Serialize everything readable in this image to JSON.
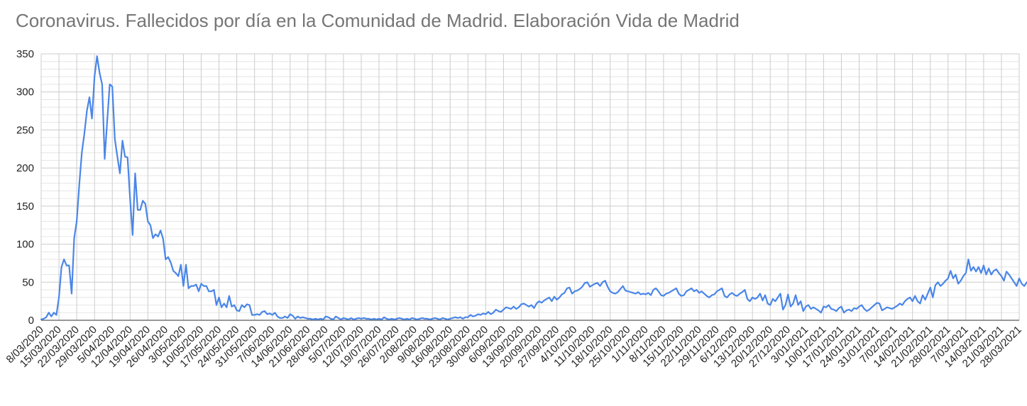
{
  "chart_data": {
    "type": "line",
    "title": "Coronavirus. Fallecidos por día en la Comunidad de Madrid. Elaboración Vida de Madrid",
    "xlabel": "",
    "ylabel": "",
    "ylim": [
      0,
      350
    ],
    "yticks": [
      0,
      50,
      100,
      150,
      200,
      250,
      300,
      350
    ],
    "x_start": "2020-03-08",
    "x_end": "2021-03-28",
    "grid": true,
    "legend": "none",
    "line_color": "#4a86e8",
    "xtick_labels": [
      "8/03/2020",
      "15/03/2020",
      "22/03/2020",
      "29/03/2020",
      "5/04/2020",
      "12/04/2020",
      "19/04/2020",
      "26/04/2020",
      "3/05/2020",
      "10/05/2020",
      "17/05/2020",
      "24/05/2020",
      "31/05/2020",
      "7/06/2020",
      "14/06/2020",
      "21/06/2020",
      "28/06/2020",
      "5/07/2020",
      "12/07/2020",
      "19/07/2020",
      "26/07/2020",
      "2/08/2020",
      "9/08/2020",
      "16/08/2020",
      "23/08/2020",
      "30/08/2020",
      "6/09/2020",
      "13/09/2020",
      "20/09/2020",
      "27/09/2020",
      "4/10/2020",
      "11/10/2020",
      "18/10/2020",
      "25/10/2020",
      "1/11/2020",
      "8/11/2020",
      "15/11/2020",
      "22/11/2020",
      "29/11/2020",
      "6/12/2020",
      "13/12/2020",
      "20/12/2020",
      "27/12/2020",
      "3/01/2021",
      "10/01/2021",
      "17/01/2021",
      "24/01/2021",
      "31/01/2021",
      "7/02/2021",
      "14/02/2021",
      "21/02/2021",
      "28/02/2021",
      "7/03/2021",
      "14/03/2021",
      "21/03/2021",
      "28/03/2021"
    ],
    "series": [
      {
        "name": "",
        "values": [
          1,
          2,
          4,
          10,
          5,
          10,
          7,
          30,
          70,
          80,
          72,
          72,
          35,
          108,
          130,
          178,
          220,
          245,
          275,
          293,
          265,
          320,
          347,
          325,
          310,
          212,
          262,
          310,
          307,
          238,
          215,
          193,
          236,
          215,
          214,
          160,
          112,
          193,
          145,
          145,
          157,
          153,
          130,
          125,
          108,
          113,
          110,
          118,
          107,
          80,
          83,
          76,
          65,
          62,
          58,
          73,
          45,
          73,
          42,
          45,
          45,
          47,
          38,
          48,
          45,
          45,
          38,
          38,
          40,
          20,
          30,
          17,
          22,
          17,
          32,
          18,
          20,
          13,
          12,
          20,
          17,
          21,
          20,
          7,
          7,
          8,
          7,
          11,
          12,
          8,
          9,
          7,
          10,
          5,
          3,
          3,
          5,
          3,
          8,
          6,
          2,
          5,
          3,
          4,
          3,
          2,
          2,
          1,
          2,
          1,
          2,
          1,
          5,
          4,
          2,
          1,
          5,
          3,
          1,
          3,
          2,
          1,
          3,
          1,
          2,
          3,
          2,
          3,
          2,
          2,
          1,
          2,
          1,
          2,
          1,
          4,
          2,
          1,
          2,
          1,
          2,
          3,
          2,
          1,
          2,
          1,
          3,
          2,
          1,
          2,
          3,
          2,
          2,
          1,
          2,
          3,
          2,
          1,
          3,
          2,
          1,
          2,
          3,
          4,
          3,
          4,
          2,
          4,
          4,
          7,
          5,
          6,
          8,
          7,
          9,
          8,
          11,
          8,
          10,
          14,
          12,
          11,
          14,
          17,
          16,
          15,
          18,
          15,
          17,
          21,
          22,
          20,
          18,
          20,
          16,
          22,
          25,
          23,
          26,
          28,
          30,
          25,
          31,
          27,
          30,
          34,
          36,
          42,
          43,
          35,
          38,
          39,
          41,
          44,
          49,
          50,
          44,
          46,
          48,
          49,
          45,
          50,
          52,
          44,
          38,
          36,
          35,
          37,
          41,
          45,
          39,
          38,
          37,
          36,
          35,
          37,
          34,
          35,
          34,
          36,
          33,
          40,
          42,
          38,
          33,
          32,
          35,
          36,
          38,
          40,
          42,
          35,
          32,
          33,
          38,
          40,
          42,
          38,
          40,
          36,
          38,
          35,
          32,
          30,
          33,
          34,
          38,
          40,
          42,
          32,
          30,
          34,
          36,
          33,
          32,
          35,
          37,
          40,
          28,
          25,
          30,
          28,
          30,
          35,
          26,
          33,
          22,
          20,
          28,
          25,
          30,
          35,
          14,
          20,
          34,
          18,
          22,
          33,
          20,
          25,
          12,
          18,
          20,
          15,
          17,
          15,
          13,
          10,
          18,
          17,
          20,
          15,
          14,
          12,
          16,
          18,
          10,
          13,
          14,
          12,
          16,
          15,
          18,
          20,
          15,
          12,
          14,
          17,
          20,
          23,
          22,
          13,
          15,
          17,
          16,
          15,
          17,
          19,
          22,
          20,
          25,
          28,
          30,
          25,
          32,
          25,
          22,
          33,
          27,
          35,
          43,
          30,
          46,
          50,
          45,
          48,
          52,
          55,
          65,
          55,
          60,
          48,
          52,
          58,
          62,
          80,
          65,
          70,
          64,
          70,
          62,
          72,
          60,
          68,
          60,
          65,
          67,
          62,
          58,
          52,
          64,
          60,
          55,
          50,
          45,
          55,
          48,
          45,
          50,
          52,
          46,
          48,
          45,
          40,
          35,
          40,
          30,
          35,
          33,
          34,
          32,
          28,
          30,
          25,
          22,
          37,
          33,
          26,
          32,
          22,
          21,
          20,
          26,
          30,
          23
        ]
      }
    ]
  }
}
